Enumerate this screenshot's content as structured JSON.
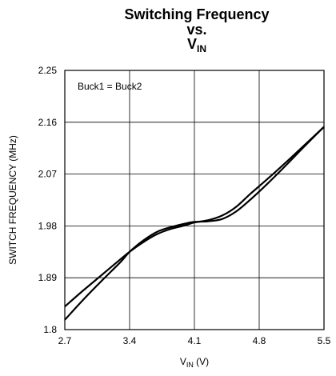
{
  "chart_data": {
    "type": "line",
    "title_lines": {
      "line1": "Switching Frequency",
      "line2": "vs.",
      "line3_main": "V",
      "line3_sub": "IN"
    },
    "xlabel_main": "V",
    "xlabel_sub": "IN",
    "xlabel_unit": " (V)",
    "ylabel": "SWITCH FREQUENCY (MHz)",
    "annotation": "Buck1 = Buck2",
    "xlim": [
      2.7,
      5.5
    ],
    "ylim": [
      1.8,
      2.25
    ],
    "x_ticks": [
      "2.7",
      "3.4",
      "4.1",
      "4.8",
      "5.5"
    ],
    "y_ticks": [
      "2.25",
      "2.16",
      "2.07",
      "1.98",
      "1.89",
      "1.8"
    ],
    "x_tick_values": [
      2.7,
      3.4,
      4.1,
      4.8,
      5.5
    ],
    "y_tick_values": [
      2.25,
      2.16,
      2.07,
      1.98,
      1.89,
      1.8
    ],
    "grid": true,
    "series": [
      {
        "color": "#000000",
        "x": [
          2.7,
          2.9,
          3.1,
          3.3,
          3.4,
          3.55,
          3.7,
          3.85,
          4.0,
          4.1,
          4.25,
          4.4,
          4.55,
          4.7,
          4.9,
          5.1,
          5.3,
          5.5
        ],
        "y": [
          1.817,
          1.852,
          1.885,
          1.917,
          1.935,
          1.955,
          1.97,
          1.978,
          1.984,
          1.987,
          1.988,
          1.992,
          2.005,
          2.025,
          2.055,
          2.087,
          2.12,
          2.152
        ]
      },
      {
        "color": "#000000",
        "x": [
          2.7,
          2.9,
          3.1,
          3.3,
          3.4,
          3.55,
          3.7,
          3.85,
          4.0,
          4.1,
          4.25,
          4.4,
          4.55,
          4.7,
          4.9,
          5.1,
          5.3,
          5.5
        ],
        "y": [
          1.84,
          1.868,
          1.895,
          1.922,
          1.935,
          1.952,
          1.966,
          1.975,
          1.981,
          1.986,
          1.99,
          1.998,
          2.013,
          2.035,
          2.063,
          2.092,
          2.122,
          2.152
        ]
      }
    ]
  }
}
